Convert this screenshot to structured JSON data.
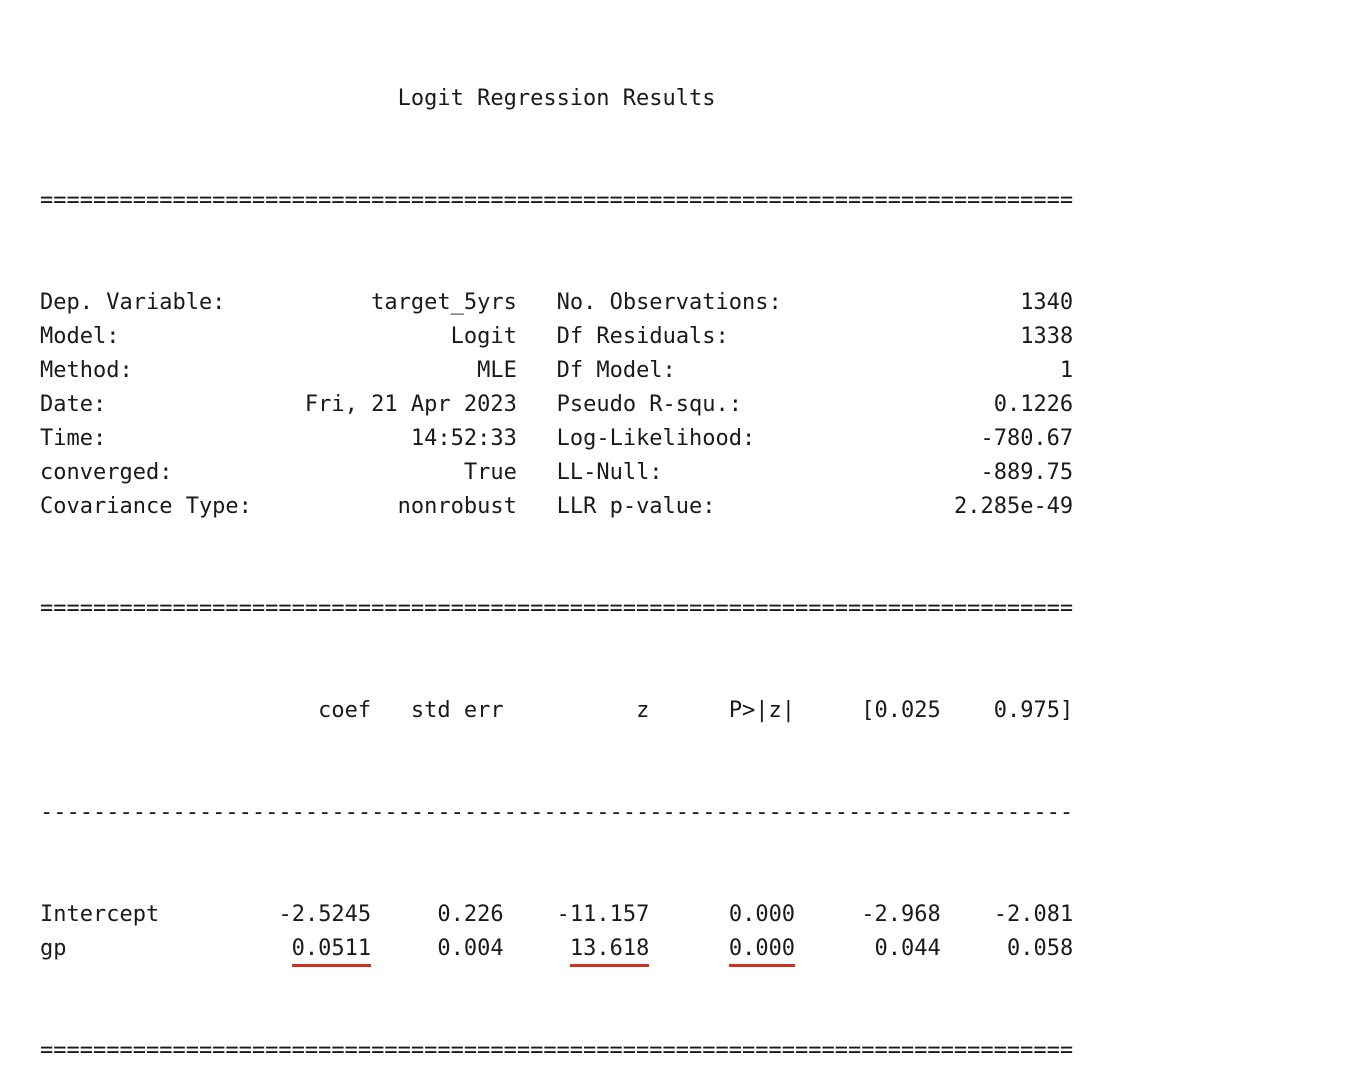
{
  "title": "Logit Regression Results",
  "rule_double": "==============================================================================",
  "rule_dashed": "------------------------------------------------------------------------------",
  "summary": [
    {
      "left_label": "Dep. Variable:",
      "left_value": "target_5yrs",
      "right_label": "No. Observations:",
      "right_value": "1340"
    },
    {
      "left_label": "Model:",
      "left_value": "Logit",
      "right_label": "Df Residuals:",
      "right_value": "1338"
    },
    {
      "left_label": "Method:",
      "left_value": "MLE",
      "right_label": "Df Model:",
      "right_value": "1"
    },
    {
      "left_label": "Date:",
      "left_value": "Fri, 21 Apr 2023",
      "right_label": "Pseudo R-squ.:",
      "right_value": "0.1226"
    },
    {
      "left_label": "Time:",
      "left_value": "14:52:33",
      "right_label": "Log-Likelihood:",
      "right_value": "-780.67"
    },
    {
      "left_label": "converged:",
      "left_value": "True",
      "right_label": "LL-Null:",
      "right_value": "-889.75"
    },
    {
      "left_label": "Covariance Type:",
      "left_value": "nonrobust",
      "right_label": "LLR p-value:",
      "right_value": "2.285e-49"
    }
  ],
  "coef_headers": [
    "coef",
    "std err",
    "z",
    "P>|z|",
    "[0.025",
    "0.975]"
  ],
  "coef_rows": [
    {
      "name": "Intercept",
      "values": [
        "-2.5245",
        "0.226",
        "-11.157",
        "0.000",
        "-2.968",
        "-2.081"
      ],
      "highlight": [
        false,
        false,
        false,
        false,
        false,
        false
      ]
    },
    {
      "name": "gp",
      "values": [
        "0.0511",
        "0.004",
        "13.618",
        "0.000",
        "0.044",
        "0.058"
      ],
      "highlight": [
        true,
        false,
        true,
        true,
        false,
        false
      ]
    }
  ],
  "colors": {
    "text": "#1a1a1a",
    "underline": "#d0311d",
    "background": "#ffffff"
  }
}
